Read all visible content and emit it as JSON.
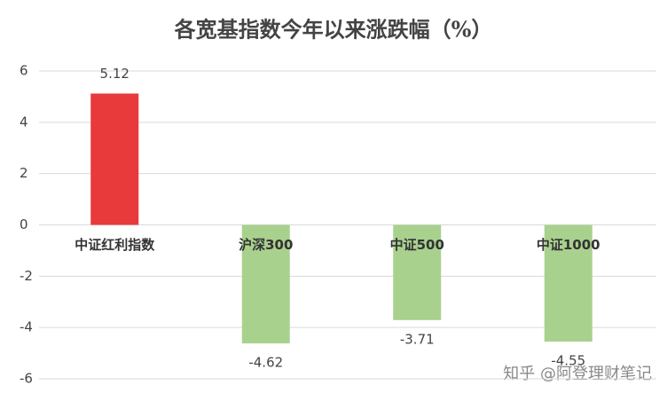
{
  "chart_data": {
    "type": "bar",
    "title": "各宽基指数今年以来涨跌幅（%）",
    "categories": [
      "中证红利指数",
      "沪深300",
      "中证500",
      "中证1000"
    ],
    "values": [
      5.12,
      -4.62,
      -3.71,
      -4.55
    ],
    "colors": [
      "#e8393b",
      "#a9d18e",
      "#a9d18e",
      "#a9d18e"
    ],
    "ylim": [
      -6,
      6
    ],
    "yticks": [
      -6,
      -4,
      -2,
      0,
      2,
      4,
      6
    ],
    "grid": true,
    "watermark": "知乎 @阿登理财笔记"
  }
}
